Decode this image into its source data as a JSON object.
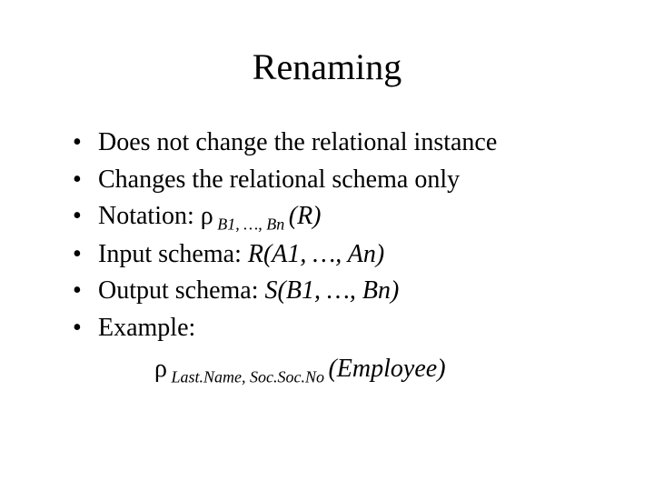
{
  "title": "Renaming",
  "bullets": {
    "b1": "Does not change the relational instance",
    "b2": "Changes the relational schema only",
    "b3_prefix": "Notation: ",
    "b3_rho": "ρ",
    "b3_sub": " B1, …, Bn ",
    "b3_suffix": "(R)",
    "b4_prefix": "Input schema: ",
    "b4_ital": "R(A1, …, An)",
    "b5_prefix": "Output schema: ",
    "b5_ital": "S(B1, …, Bn)",
    "b6": "Example:"
  },
  "example": {
    "rho": "ρ",
    "sub": " Last.Name, Soc.Soc.No ",
    "main": "(Employee)"
  },
  "style": {
    "background_color": "#ffffff",
    "text_color": "#000000",
    "title_fontsize": 40,
    "body_fontsize": 28,
    "sub_fontsize": 18,
    "font_family": "Times New Roman"
  }
}
